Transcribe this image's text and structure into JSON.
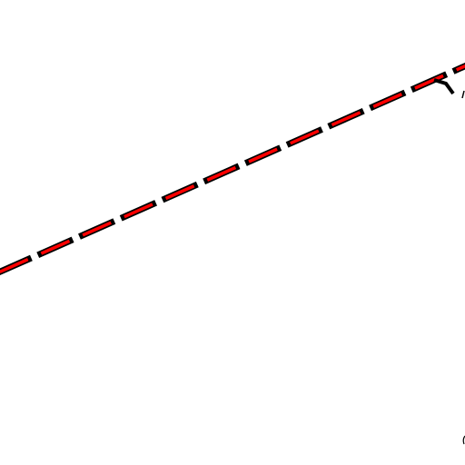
{
  "diagram": {
    "background_color": "#ffffff",
    "line_outline_color": "#000000",
    "line_dash_color": "#ff0000",
    "line_style": "dashed-outlined",
    "marker": "tick-mark",
    "marker_color": "#000000"
  }
}
